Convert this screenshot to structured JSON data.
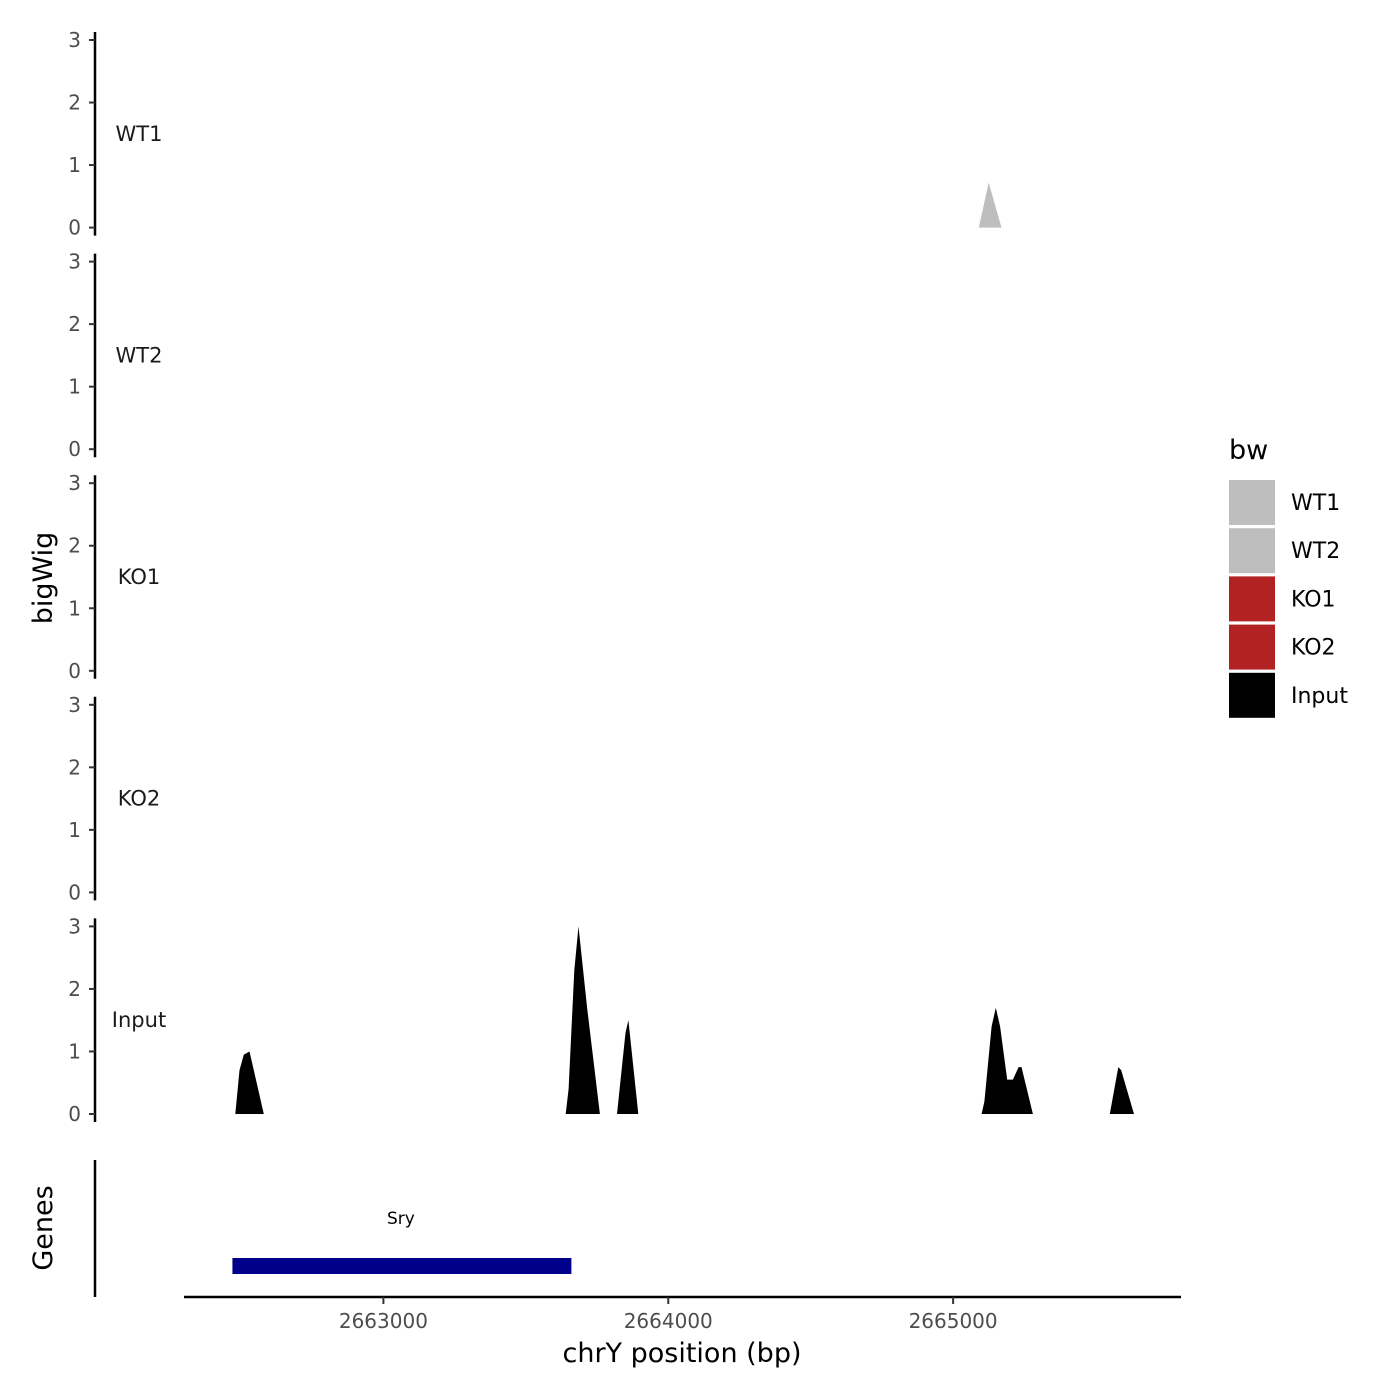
{
  "chart_data": {
    "type": "area",
    "ylabel": "bigWig",
    "xlabel": "chrY position (bp)",
    "xlim": [
      2662300,
      2665800
    ],
    "ylim": [
      0,
      3
    ],
    "y_ticks": [
      "0",
      "1",
      "2",
      "3"
    ],
    "x_ticks": [
      {
        "value": 2663000,
        "label": "2663000"
      },
      {
        "value": 2664000,
        "label": "2664000"
      },
      {
        "value": 2665000,
        "label": "2665000"
      }
    ],
    "grid": false,
    "tracks": [
      {
        "name": "WT1",
        "color": "#BEBEBE",
        "points": [
          [
            2665090,
            0
          ],
          [
            2665125,
            0.72
          ],
          [
            2665170,
            0
          ]
        ]
      },
      {
        "name": "WT2",
        "color": "#BEBEBE",
        "points": []
      },
      {
        "name": "KO1",
        "color": "#B22222",
        "points": []
      },
      {
        "name": "KO2",
        "color": "#B22222",
        "points": []
      },
      {
        "name": "Input",
        "color": "#000000",
        "points": [
          [
            2662480,
            0
          ],
          [
            2662495,
            0.7
          ],
          [
            2662510,
            0.95
          ],
          [
            2662530,
            1.0
          ],
          [
            2662580,
            0
          ],
          [
            2663640,
            0
          ],
          [
            2663650,
            0.4
          ],
          [
            2663670,
            2.3
          ],
          [
            2663685,
            3.0
          ],
          [
            2663715,
            1.7
          ],
          [
            2663760,
            0
          ],
          [
            2663820,
            0
          ],
          [
            2663850,
            1.3
          ],
          [
            2663860,
            1.5
          ],
          [
            2663895,
            0
          ],
          [
            2665100,
            0
          ],
          [
            2665110,
            0.2
          ],
          [
            2665135,
            1.4
          ],
          [
            2665150,
            1.7
          ],
          [
            2665165,
            1.4
          ],
          [
            2665190,
            0.55
          ],
          [
            2665210,
            0.55
          ],
          [
            2665230,
            0.75
          ],
          [
            2665240,
            0.75
          ],
          [
            2665280,
            0
          ],
          [
            2665550,
            0
          ],
          [
            2665580,
            0.75
          ],
          [
            2665590,
            0.7
          ],
          [
            2665635,
            0
          ]
        ]
      }
    ],
    "genes_track": {
      "label": "Genes",
      "genes": [
        {
          "name": "Sry",
          "start": 2662470,
          "end": 2663660,
          "color": "#00008B"
        }
      ]
    },
    "legend": {
      "title": "bw",
      "position": "right",
      "entries": [
        {
          "label": "WT1",
          "color": "#BEBEBE"
        },
        {
          "label": "WT2",
          "color": "#BEBEBE"
        },
        {
          "label": "KO1",
          "color": "#B22222"
        },
        {
          "label": "KO2",
          "color": "#B22222"
        },
        {
          "label": "Input",
          "color": "#000000"
        }
      ]
    }
  }
}
